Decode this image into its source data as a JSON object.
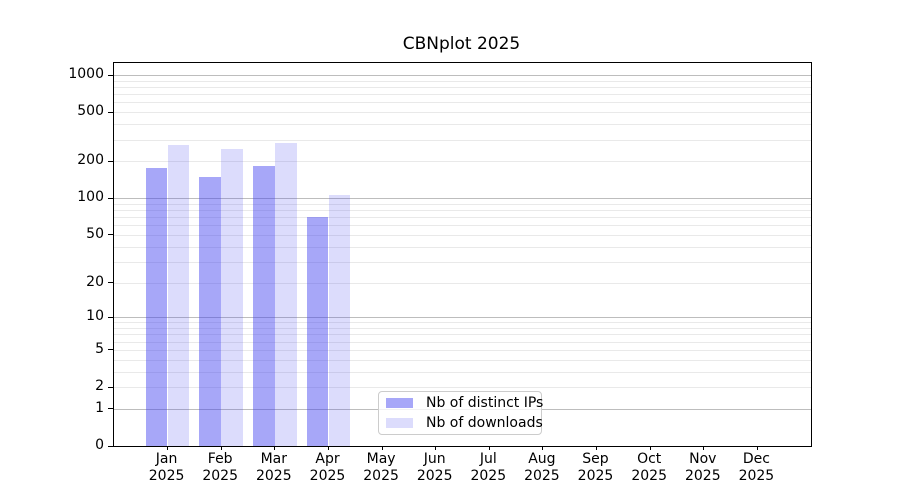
{
  "chart_data": {
    "type": "bar",
    "title": "CBNplot 2025",
    "yscale": "log-like (log10 of 1+x), ticks 0,1,2,5,10,20,50,100,200,500,1000",
    "categories": [
      "Jan",
      "Feb",
      "Mar",
      "Apr",
      "May",
      "Jun",
      "Jul",
      "Aug",
      "Sep",
      "Oct",
      "Nov",
      "Dec"
    ],
    "year_label": "2025",
    "series": [
      {
        "name": "Nb of distinct IPs",
        "color": "#a7a7f7",
        "base_color": "#3c3cf0",
        "alpha": 0.45,
        "values": [
          176,
          149,
          183,
          70,
          0,
          0,
          0,
          0,
          0,
          0,
          0,
          0
        ]
      },
      {
        "name": "Nb of downloads",
        "color": "#dcdcfb",
        "base_color": "#3c3cf0",
        "alpha": 0.18,
        "values": [
          273,
          253,
          283,
          106,
          0,
          0,
          0,
          0,
          0,
          0,
          0,
          0
        ]
      }
    ],
    "yticks": [
      0,
      1,
      2,
      5,
      10,
      20,
      50,
      100,
      200,
      500,
      1000
    ],
    "ylim": [
      0,
      1250
    ],
    "xlabel": "",
    "ylabel": "",
    "grid": {
      "orientation": "horizontal",
      "major": [
        1,
        10,
        100,
        1000
      ],
      "minor": [
        2,
        3,
        4,
        5,
        6,
        7,
        8,
        9,
        20,
        30,
        40,
        50,
        60,
        70,
        80,
        90,
        200,
        300,
        400,
        500,
        600,
        700,
        800,
        900
      ],
      "major_color": "#bdbdbd",
      "minor_color": "#e9e9e9"
    },
    "legend": {
      "position": "lower center-right",
      "border_color": "#cccccc",
      "background": "#ffffff"
    }
  }
}
